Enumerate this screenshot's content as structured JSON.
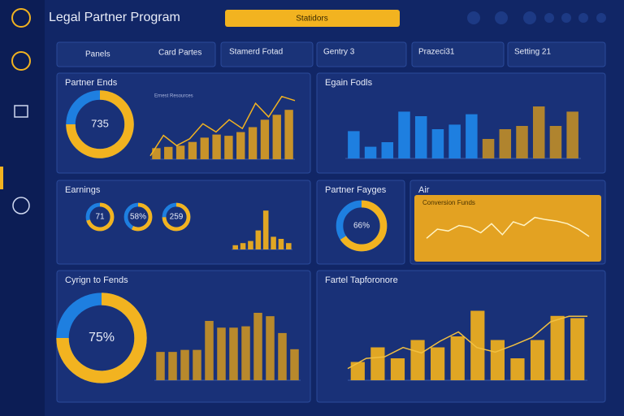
{
  "header": {
    "title": "Legal Partner Program",
    "search": "Statidors"
  },
  "filters": [
    "Panels",
    "Card Partes",
    "Stamerd Fotad",
    "Gentry 3",
    "Prazeci31",
    "Setting 21"
  ],
  "panels": [
    {
      "title": "Partner Ends",
      "donut": {
        "value": 75,
        "label": "735"
      },
      "legend": "Ernest Resources",
      "bars": {
        "ylim": [
          0,
          100
        ],
        "values": [
          18,
          20,
          22,
          28,
          35,
          40,
          38,
          44,
          52,
          64,
          72,
          80
        ],
        "color": "#c8932a"
      },
      "line": {
        "ylim": [
          0,
          100
        ],
        "values": [
          5,
          35,
          20,
          30,
          52,
          40,
          58,
          45,
          82,
          62,
          92,
          86
        ],
        "color": "#f2b320"
      }
    },
    {
      "title": "Egain Fodls",
      "bars": {
        "ylim": [
          0,
          100
        ],
        "values": [
          42,
          18,
          25,
          72,
          65,
          45,
          52,
          68,
          30,
          45,
          50,
          80,
          50,
          72
        ],
        "colors": [
          "#1e7fe0",
          "#1e7fe0",
          "#1e7fe0",
          "#1e7fe0",
          "#1e7fe0",
          "#1e7fe0",
          "#1e7fe0",
          "#1e7fe0",
          "#b0842e",
          "#b0842e",
          "#b0842e",
          "#b0842e",
          "#b0842e",
          "#b0842e"
        ]
      }
    },
    {
      "title": "Earnings",
      "rings": [
        {
          "value": 71,
          "label": "71"
        },
        {
          "value": 58,
          "label": "58%"
        },
        {
          "value": 75,
          "label": "259"
        }
      ],
      "bars": {
        "ylim": [
          0,
          100
        ],
        "values": [
          10,
          15,
          20,
          45,
          92,
          30,
          25,
          15
        ],
        "color": "#e0a624"
      }
    },
    {
      "title": "Partner Fayges",
      "donut": {
        "value": 66,
        "label": "66%"
      }
    },
    {
      "title": "Air",
      "subtitle": "Conversion Funds",
      "line": {
        "ylim": [
          0,
          100
        ],
        "values": [
          15,
          40,
          35,
          50,
          45,
          30,
          55,
          25,
          60,
          50,
          72,
          66,
          62,
          55,
          40,
          20
        ],
        "color": "#fff3c4"
      }
    },
    {
      "title": "Cyrign to Fends",
      "donut": {
        "value": 75,
        "label": "75%"
      },
      "bars": {
        "ylim": [
          0,
          100
        ],
        "values": [
          42,
          42,
          45,
          45,
          88,
          78,
          78,
          80,
          100,
          95,
          70,
          46
        ],
        "color": "#b8892c"
      }
    },
    {
      "title": "Fartel Tapforonore",
      "bars": {
        "ylim": [
          0,
          100
        ],
        "values": [
          25,
          45,
          30,
          55,
          45,
          60,
          95,
          55,
          30,
          55,
          88,
          85
        ],
        "color": "#e0a624"
      },
      "line": {
        "ylim": [
          0,
          100
        ],
        "values": [
          15,
          28,
          30,
          42,
          35,
          50,
          62,
          42,
          36,
          45,
          55,
          75,
          82,
          82
        ],
        "color": "#f2c040"
      }
    }
  ]
}
